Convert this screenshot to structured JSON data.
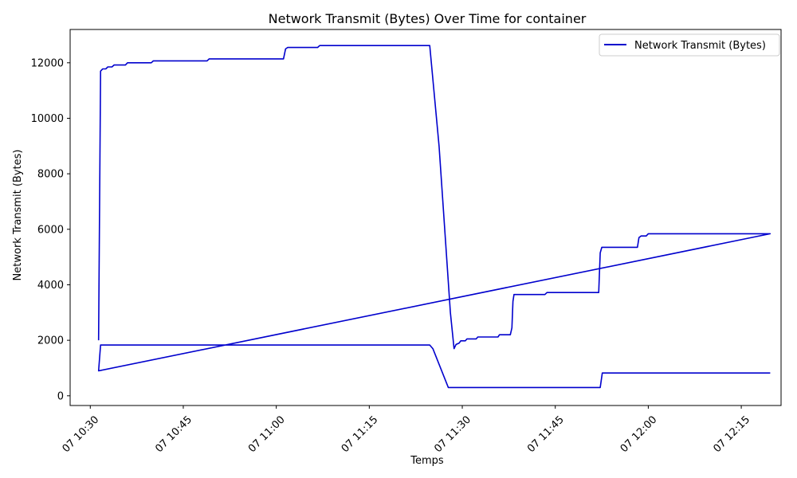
{
  "chart_data": {
    "type": "line",
    "title": "Network Transmit (Bytes) Over Time for container",
    "xlabel": "Temps",
    "ylabel": "Network Transmit (Bytes)",
    "xlim": [
      "10:26:45",
      "12:21:25"
    ],
    "ylim": [
      -350,
      13200
    ],
    "x_ticks": [
      {
        "t": "10:30",
        "label": "07 10:30"
      },
      {
        "t": "10:45",
        "label": "07 10:45"
      },
      {
        "t": "11:00",
        "label": "07 11:00"
      },
      {
        "t": "11:15",
        "label": "07 11:15"
      },
      {
        "t": "11:30",
        "label": "07 11:30"
      },
      {
        "t": "11:45",
        "label": "07 11:45"
      },
      {
        "t": "12:00",
        "label": "07 12:00"
      },
      {
        "t": "12:15",
        "label": "07 12:15"
      }
    ],
    "y_ticks": [
      0,
      2000,
      4000,
      6000,
      8000,
      10000,
      12000
    ],
    "legend": {
      "position": "upper right"
    },
    "colors": {
      "series": "#0000cd"
    },
    "series": [
      {
        "name": "Network Transmit (Bytes)",
        "points": [
          [
            "10:31:20",
            2000
          ],
          [
            "10:31:40",
            11700
          ],
          [
            "10:32:00",
            11780
          ],
          [
            "10:32:30",
            11780
          ],
          [
            "10:32:50",
            11850
          ],
          [
            "10:33:30",
            11850
          ],
          [
            "10:33:50",
            11920
          ],
          [
            "10:35:40",
            11920
          ],
          [
            "10:36:00",
            12000
          ],
          [
            "10:39:50",
            12000
          ],
          [
            "10:40:10",
            12070
          ],
          [
            "10:48:50",
            12070
          ],
          [
            "10:49:10",
            12140
          ],
          [
            "11:01:10",
            12140
          ],
          [
            "11:01:30",
            12500
          ],
          [
            "11:01:50",
            12550
          ],
          [
            "11:06:40",
            12550
          ],
          [
            "11:07:00",
            12620
          ],
          [
            "11:24:45",
            12620
          ],
          [
            "11:26:15",
            9000
          ],
          [
            "11:28:05",
            3000
          ],
          [
            "11:28:40",
            1700
          ],
          [
            "11:29:00",
            1850
          ],
          [
            "11:29:30",
            1900
          ],
          [
            "11:29:45",
            1980
          ],
          [
            "11:30:30",
            1980
          ],
          [
            "11:30:45",
            2050
          ],
          [
            "11:32:15",
            2050
          ],
          [
            "11:32:30",
            2120
          ],
          [
            "11:35:45",
            2120
          ],
          [
            "11:36:00",
            2200
          ],
          [
            "11:37:45",
            2200
          ],
          [
            "11:38:00",
            2450
          ],
          [
            "11:38:10",
            3400
          ],
          [
            "11:38:20",
            3650
          ],
          [
            "11:43:20",
            3650
          ],
          [
            "11:43:40",
            3720
          ],
          [
            "11:52:00",
            3720
          ],
          [
            "11:52:15",
            5150
          ],
          [
            "11:52:30",
            5350
          ],
          [
            "11:58:15",
            5350
          ],
          [
            "11:58:30",
            5700
          ],
          [
            "11:58:50",
            5760
          ],
          [
            "11:59:40",
            5760
          ],
          [
            "12:00:00",
            5840
          ],
          [
            "12:19:40",
            5840
          ],
          [
            "10:31:20",
            900
          ],
          [
            "10:31:40",
            1830
          ],
          [
            "11:24:45",
            1830
          ],
          [
            "11:25:15",
            1700
          ],
          [
            "11:27:45",
            300
          ],
          [
            "11:52:15",
            300
          ],
          [
            "11:52:35",
            820
          ],
          [
            "12:19:40",
            820
          ]
        ]
      }
    ]
  }
}
